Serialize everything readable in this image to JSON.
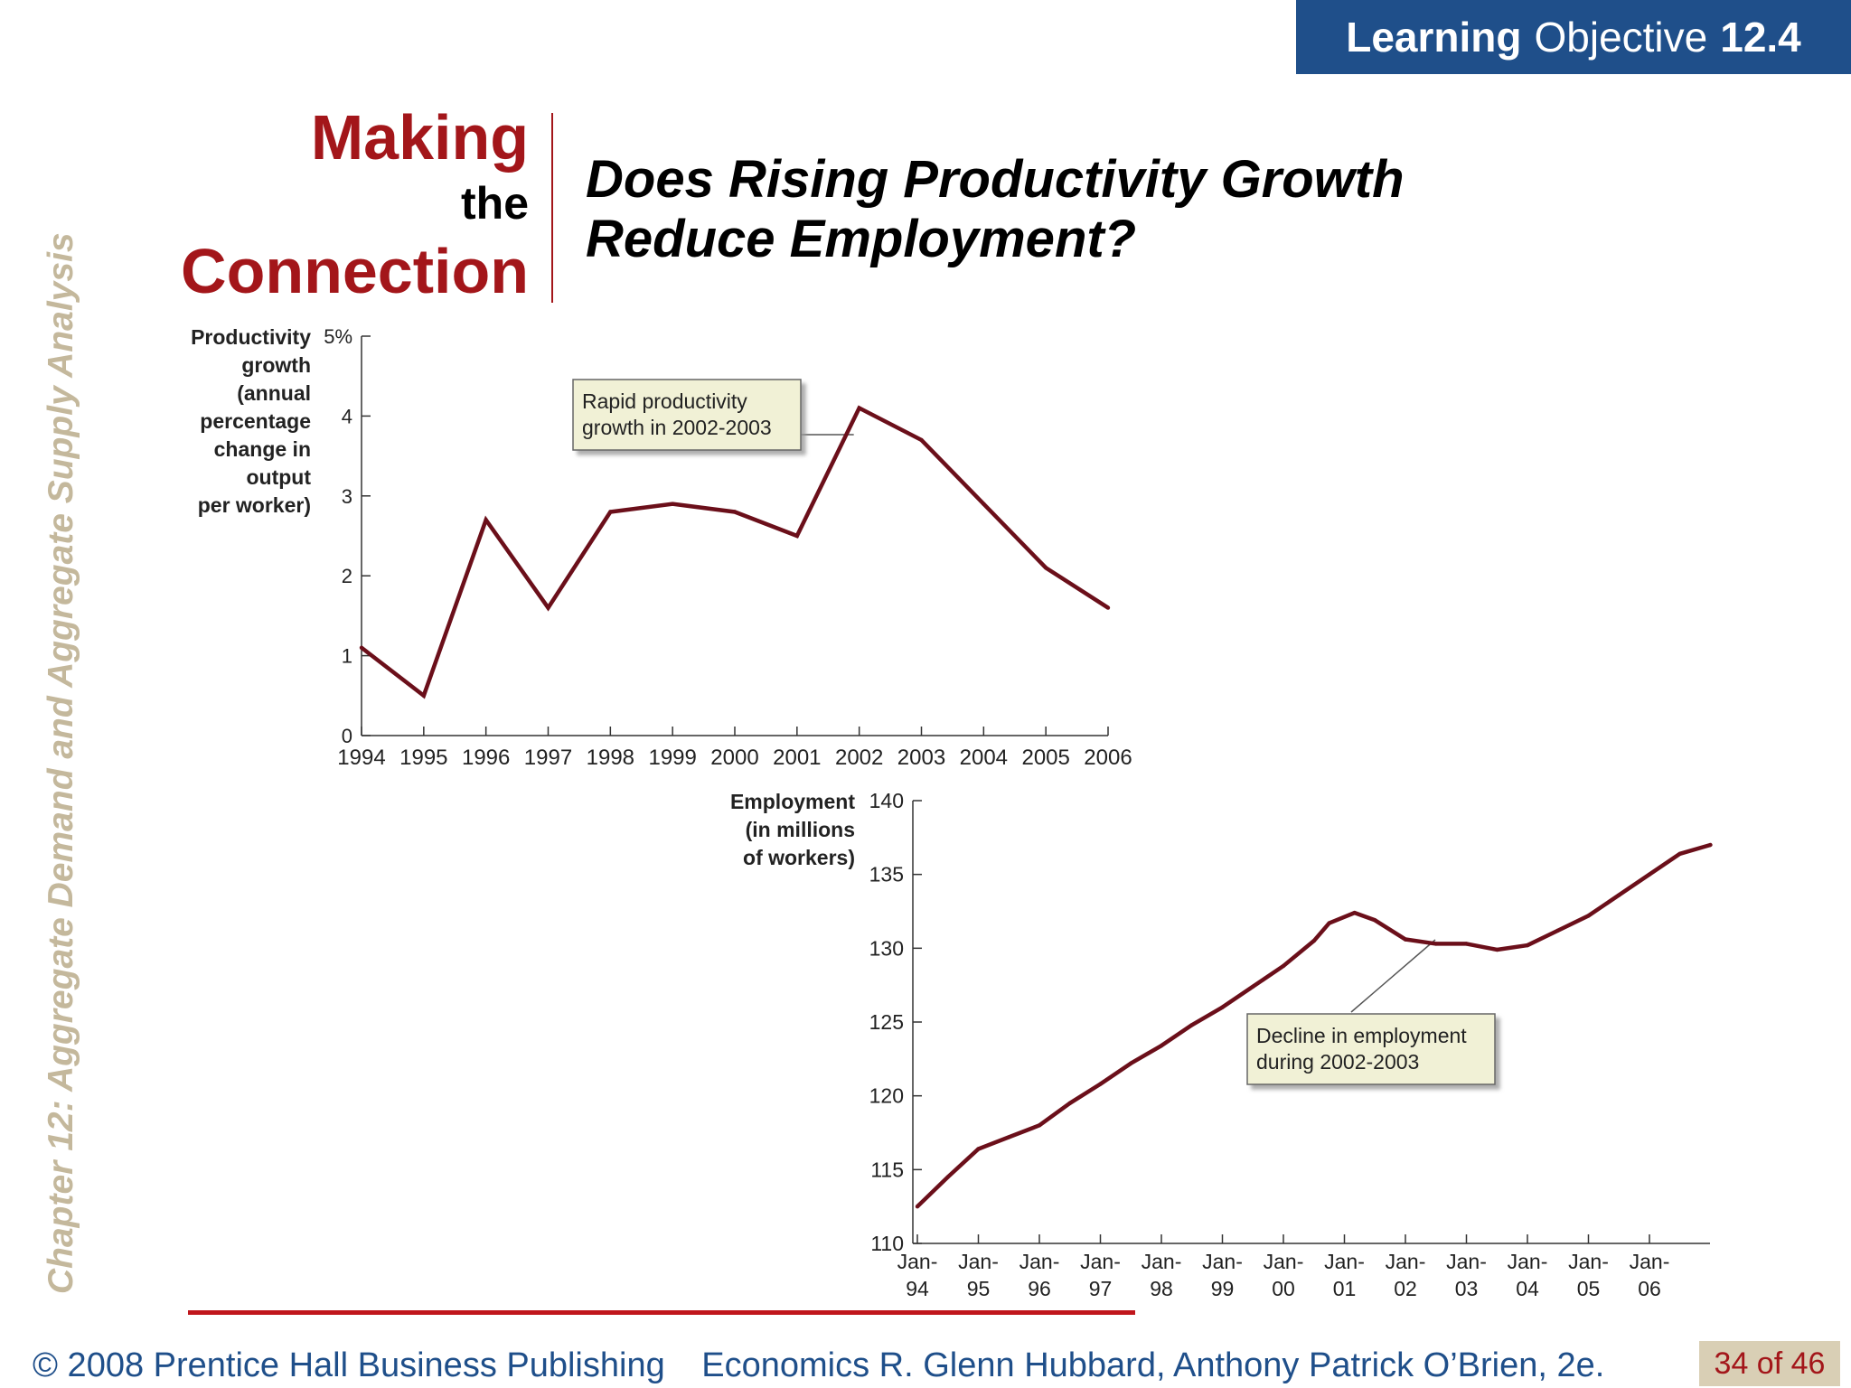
{
  "banner": {
    "bold": "Learning",
    "regular": "Objective",
    "number": "12.4"
  },
  "side_title": "Chapter 12:  Aggregate Demand and Aggregate Supply Analysis",
  "mtc": {
    "making": "Making",
    "the": "the",
    "connection": "Connection"
  },
  "headline": "Does Rising Productivity Growth Reduce Employment?",
  "footer": {
    "copyright": "© 2008 Prentice Hall Business Publishing",
    "book": "Economics  R. Glenn Hubbard, Anthony Patrick O’Brien, 2e.",
    "page": "34 of 46"
  },
  "colors": {
    "line": "#6b0f1a",
    "brand_blue": "#1f4f8a",
    "brand_red": "#a3161a",
    "callout_bg": "#f1f1d6"
  },
  "chart_data": [
    {
      "type": "line",
      "ylabel_lines": [
        "Productivity",
        "growth",
        "(annual",
        "percentage",
        "change in",
        "output",
        "per worker)"
      ],
      "x": [
        "1994",
        "1995",
        "1996",
        "1997",
        "1998",
        "1999",
        "2000",
        "2001",
        "2002",
        "2003",
        "2004",
        "2005",
        "2006"
      ],
      "x_tick_labels": [
        "1994",
        "1995",
        "1996",
        "1997",
        "1998",
        "1999",
        "2000",
        "2001",
        "2002",
        "2003",
        "2004",
        "2005",
        "2006"
      ],
      "y_ticks": [
        0,
        1,
        2,
        3,
        4,
        5
      ],
      "y_tick_labels": [
        "0",
        "1",
        "2",
        "3",
        "4",
        "5%"
      ],
      "ylim": [
        0,
        5
      ],
      "series": [
        {
          "values": [
            1.1,
            0.5,
            2.7,
            1.6,
            2.8,
            2.9,
            2.8,
            2.5,
            4.1,
            3.7,
            2.9,
            2.1,
            1.6
          ]
        }
      ],
      "annotation": {
        "lines": [
          "Rapid productivity",
          "growth in 2002-2003"
        ],
        "points_to": "2002"
      }
    },
    {
      "type": "line",
      "ylabel_lines": [
        "Employment",
        "(in millions",
        "of workers)"
      ],
      "x_tick_labels": [
        [
          "Jan-",
          "94"
        ],
        [
          "Jan-",
          "95"
        ],
        [
          "Jan-",
          "96"
        ],
        [
          "Jan-",
          "97"
        ],
        [
          "Jan-",
          "98"
        ],
        [
          "Jan-",
          "99"
        ],
        [
          "Jan-",
          "00"
        ],
        [
          "Jan-",
          "01"
        ],
        [
          "Jan-",
          "02"
        ],
        [
          "Jan-",
          "03"
        ],
        [
          "Jan-",
          "04"
        ],
        [
          "Jan-",
          "05"
        ],
        [
          "Jan-",
          "06"
        ]
      ],
      "y_ticks": [
        110,
        115,
        120,
        125,
        130,
        135,
        140
      ],
      "y_tick_labels": [
        "110",
        "115",
        "120",
        "125",
        "130",
        "135",
        "140"
      ],
      "ylim": [
        110,
        140
      ],
      "series": [
        {
          "points": [
            [
              "Jan-94",
              112.5
            ],
            [
              "Jul-94",
              114.5
            ],
            [
              "Jan-95",
              116.4
            ],
            [
              "Jul-95",
              117.2
            ],
            [
              "Jan-96",
              118.0
            ],
            [
              "Jul-96",
              119.5
            ],
            [
              "Jan-97",
              120.8
            ],
            [
              "Jul-97",
              122.2
            ],
            [
              "Jan-98",
              123.4
            ],
            [
              "Jul-98",
              124.8
            ],
            [
              "Jan-99",
              126.0
            ],
            [
              "Jul-99",
              127.4
            ],
            [
              "Jan-00",
              128.8
            ],
            [
              "Jul-00",
              130.5
            ],
            [
              "Oct-00",
              131.7
            ],
            [
              "Mar-01",
              132.4
            ],
            [
              "Jul-01",
              131.9
            ],
            [
              "Jan-02",
              130.6
            ],
            [
              "Jul-02",
              130.3
            ],
            [
              "Jan-03",
              130.3
            ],
            [
              "Jul-03",
              129.9
            ],
            [
              "Jan-04",
              130.2
            ],
            [
              "Jul-04",
              131.2
            ],
            [
              "Jan-05",
              132.2
            ],
            [
              "Jul-05",
              133.6
            ],
            [
              "Jan-06",
              135.0
            ],
            [
              "Jul-06",
              136.4
            ],
            [
              "Jan-07",
              137.0
            ]
          ]
        }
      ],
      "annotation": {
        "lines": [
          "Decline in employment",
          "during 2002-2003"
        ],
        "points_to": "Jan-02"
      }
    }
  ]
}
